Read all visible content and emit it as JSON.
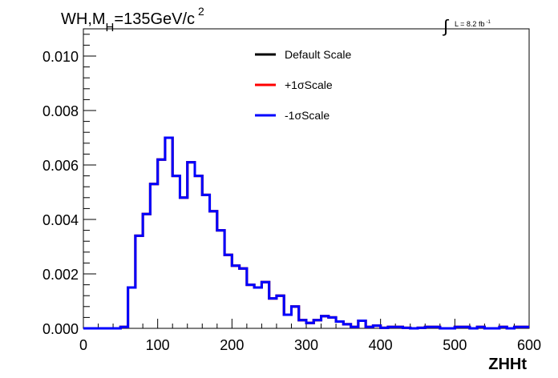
{
  "chart_data": {
    "type": "line",
    "title": {
      "main": "WH,M",
      "sub": "H",
      "rest": "=135GeV/c",
      "sup": "2"
    },
    "lumi": {
      "integral": "∫",
      "text": "L = 8.2 fb",
      "sup": "-1"
    },
    "xlabel": "ZHHt",
    "ylabel": "",
    "xlim": [
      0,
      600
    ],
    "ylim": [
      0,
      0.011
    ],
    "x_ticks": [
      0,
      100,
      200,
      300,
      400,
      500,
      600
    ],
    "x_tick_labels": [
      "0",
      "100",
      "200",
      "300",
      "400",
      "500",
      "600"
    ],
    "y_ticks": [
      0,
      0.002,
      0.004,
      0.006,
      0.008,
      0.01
    ],
    "y_tick_labels": [
      "0.000",
      "0.002",
      "0.004",
      "0.006",
      "0.008",
      "0.010"
    ],
    "bin_width": 10,
    "bin_edges_start": 0,
    "legend_position": "top-right",
    "colors": {
      "default": "#000000",
      "plus": "#ff0000",
      "minus": "#0000ff"
    },
    "series": [
      {
        "name": "Default Scale",
        "color": "#000000",
        "values": [
          0,
          0,
          0,
          0,
          0,
          5e-05,
          0.0015,
          0.0034,
          0.0042,
          0.0053,
          0.0062,
          0.007,
          0.0056,
          0.0048,
          0.0061,
          0.0056,
          0.0049,
          0.0043,
          0.0036,
          0.0027,
          0.0023,
          0.0022,
          0.0016,
          0.0015,
          0.0017,
          0.0011,
          0.0012,
          0.0005,
          0.0008,
          0.0003,
          0.0002,
          0.0003,
          0.00045,
          0.0004,
          0.00025,
          0.00015,
          5e-05,
          0.00028,
          5e-05,
          0.0001,
          2e-05,
          5e-05,
          5e-05,
          2e-05,
          0,
          2e-05,
          5e-05,
          5e-05,
          0,
          0,
          5e-05,
          5e-05,
          0,
          5e-05,
          0,
          0,
          5e-05,
          0,
          5e-05,
          5e-05
        ]
      },
      {
        "name": "+1σScale",
        "color": "#ff0000",
        "values": [
          0,
          0,
          0,
          0,
          0,
          5e-05,
          0.0015,
          0.0034,
          0.0042,
          0.0053,
          0.0062,
          0.007,
          0.0056,
          0.0048,
          0.0061,
          0.0056,
          0.0049,
          0.0043,
          0.0036,
          0.0027,
          0.0023,
          0.0022,
          0.0016,
          0.0015,
          0.0017,
          0.0011,
          0.0012,
          0.0005,
          0.0008,
          0.0003,
          0.0002,
          0.0003,
          0.00045,
          0.0004,
          0.00025,
          0.00015,
          5e-05,
          0.00028,
          5e-05,
          0.0001,
          2e-05,
          5e-05,
          5e-05,
          2e-05,
          0,
          2e-05,
          5e-05,
          5e-05,
          0,
          0,
          5e-05,
          5e-05,
          0,
          5e-05,
          0,
          0,
          5e-05,
          0,
          5e-05,
          5e-05
        ]
      },
      {
        "name": "-1σScale",
        "color": "#0000ff",
        "values": [
          0,
          0,
          0,
          0,
          0,
          5e-05,
          0.0015,
          0.0034,
          0.0042,
          0.0053,
          0.0062,
          0.007,
          0.0056,
          0.0048,
          0.0061,
          0.0056,
          0.0049,
          0.0043,
          0.0036,
          0.0027,
          0.0023,
          0.0022,
          0.0016,
          0.0015,
          0.0017,
          0.0011,
          0.0012,
          0.0005,
          0.0008,
          0.0003,
          0.0002,
          0.0003,
          0.00045,
          0.0004,
          0.00025,
          0.00015,
          5e-05,
          0.00028,
          5e-05,
          0.0001,
          2e-05,
          5e-05,
          5e-05,
          2e-05,
          0,
          2e-05,
          5e-05,
          5e-05,
          0,
          0,
          5e-05,
          5e-05,
          0,
          5e-05,
          0,
          0,
          5e-05,
          0,
          5e-05,
          5e-05
        ]
      }
    ]
  }
}
